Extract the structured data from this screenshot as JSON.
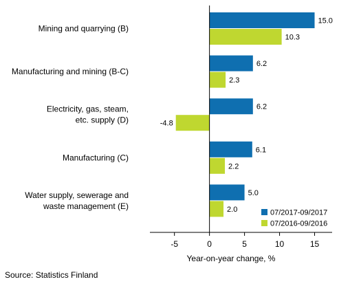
{
  "chart_data": {
    "type": "bar",
    "orientation": "horizontal",
    "title": "",
    "xlabel": "Year-on-year change, %",
    "ylabel": "",
    "xlim": [
      -8.5,
      17.5
    ],
    "xticks": [
      -5,
      0,
      5,
      10,
      15
    ],
    "xtick_labels": [
      "-5",
      "0",
      "5",
      "10",
      "15"
    ],
    "grid": false,
    "legend_position": "bottom-right",
    "categories": [
      [
        "Mining and quarrying (B)"
      ],
      [
        "Manufacturing and mining (B-C)"
      ],
      [
        "Electricity, gas, steam,",
        "etc. supply (D)"
      ],
      [
        "Manufacturing (C)"
      ],
      [
        "Water supply, sewerage and",
        "waste management (E)"
      ]
    ],
    "series": [
      {
        "name": "07/2017-09/2017",
        "color": "#0f6fb0",
        "values": [
          15.0,
          6.2,
          6.2,
          6.1,
          5.0
        ],
        "value_labels": [
          "15.0",
          "6.2",
          "6.2",
          "6.1",
          "5.0"
        ]
      },
      {
        "name": "07/2016-09/2016",
        "color": "#bfd730",
        "values": [
          10.3,
          2.3,
          -4.8,
          2.2,
          2.0
        ],
        "value_labels": [
          "10.3",
          "2.3",
          "-4.8",
          "2.2",
          "2.0"
        ]
      }
    ]
  },
  "source_note": "Source: Statistics Finland"
}
